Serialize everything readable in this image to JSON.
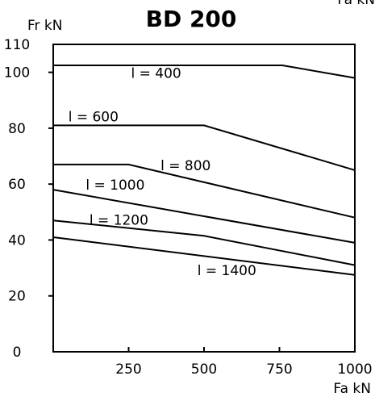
{
  "chart_data": {
    "type": "line",
    "title": "BD 200",
    "ylabel": "Fr kN",
    "xlabel": "Fa kN",
    "top_right_label": "Fa kN",
    "xlim": [
      0,
      1000
    ],
    "ylim": [
      0,
      110
    ],
    "x_ticks": [
      250,
      500,
      750,
      1000
    ],
    "x_tick_labels": [
      "250",
      "500",
      "750",
      "1000"
    ],
    "y_ticks": [
      0,
      20,
      40,
      60,
      80,
      100,
      110
    ],
    "y_tick_labels": [
      "0",
      "20",
      "40",
      "60",
      "80",
      "100",
      "110"
    ],
    "grid": false,
    "legend": "none",
    "series": [
      {
        "name": "l = 400",
        "points": [
          [
            0,
            102.5
          ],
          [
            760,
            102.5
          ],
          [
            1000,
            98
          ]
        ],
        "label_at": [
          258,
          98
        ]
      },
      {
        "name": "l = 600",
        "points": [
          [
            0,
            81
          ],
          [
            500,
            81
          ],
          [
            1000,
            65
          ]
        ],
        "label_at": [
          50,
          82.5
        ]
      },
      {
        "name": "l = 800",
        "points": [
          [
            0,
            67
          ],
          [
            250,
            67
          ],
          [
            1000,
            48
          ]
        ],
        "label_at": [
          356,
          65
        ]
      },
      {
        "name": "l = 1000",
        "points": [
          [
            0,
            58
          ],
          [
            1000,
            39
          ]
        ],
        "label_at": [
          108,
          58
        ]
      },
      {
        "name": "l = 1200",
        "points": [
          [
            0,
            47
          ],
          [
            500,
            41.5
          ],
          [
            1000,
            31
          ]
        ],
        "label_at": [
          120,
          45.5
        ]
      },
      {
        "name": "l = 1400",
        "points": [
          [
            0,
            41
          ],
          [
            1000,
            27.5
          ]
        ],
        "label_at": [
          478,
          27.5
        ]
      }
    ]
  }
}
